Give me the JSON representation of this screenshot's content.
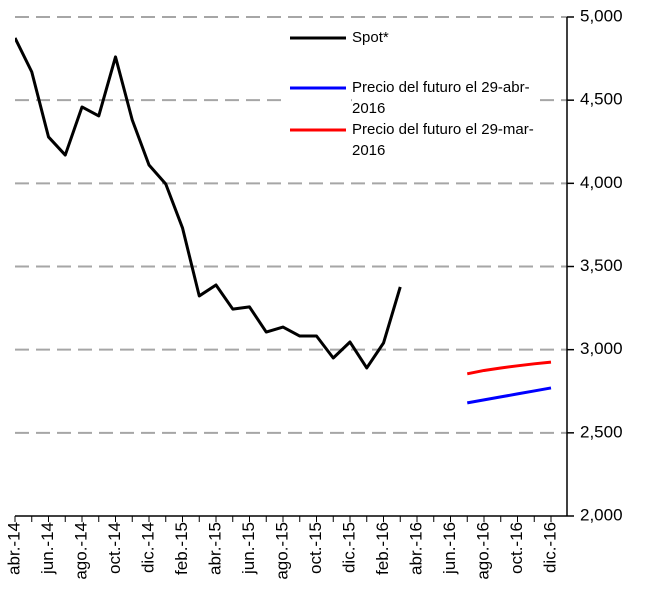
{
  "chart_data": {
    "type": "line",
    "categories": [
      "abr.-14",
      null,
      "jun.-14",
      null,
      "ago.-14",
      null,
      "oct.-14",
      null,
      "dic.-14",
      null,
      "feb.-15",
      null,
      "abr.-15",
      null,
      "jun.-15",
      null,
      "ago.-15",
      null,
      "oct.-15",
      null,
      "dic.-15",
      null,
      "feb.-16",
      null,
      "abr.-16",
      null,
      "jun.-16",
      null,
      "ago.-16",
      null,
      "oct.-16",
      null,
      "dic.-16"
    ],
    "series": [
      {
        "name": "Spot*",
        "color": "#000000",
        "values": [
          4874,
          4670,
          4279,
          4170,
          4459,
          4405,
          4760,
          4381,
          4110,
          3996,
          3732,
          3323,
          3389,
          3244,
          3257,
          3106,
          3136,
          3082,
          3082,
          2950,
          3046,
          2890,
          3040,
          3377,
          null,
          null,
          null,
          null,
          null,
          null,
          null,
          null,
          null
        ]
      },
      {
        "name": "Precio del futuro el 29-abr-2016",
        "color": "#0000ff",
        "values": [
          null,
          null,
          null,
          null,
          null,
          null,
          null,
          null,
          null,
          null,
          null,
          null,
          null,
          null,
          null,
          null,
          null,
          null,
          null,
          null,
          null,
          null,
          null,
          null,
          null,
          null,
          null,
          2680,
          2698,
          2716,
          2734,
          2752,
          2770
        ]
      },
      {
        "name": "Precio del futuro el 29-mar-2016",
        "color": "#ff0000",
        "values": [
          null,
          null,
          null,
          null,
          null,
          null,
          null,
          null,
          null,
          null,
          null,
          null,
          null,
          null,
          null,
          null,
          null,
          null,
          null,
          null,
          null,
          null,
          null,
          null,
          null,
          null,
          null,
          2855,
          2875,
          2890,
          2903,
          2915,
          2925
        ]
      }
    ],
    "ylim": [
      2000,
      5000
    ],
    "yticks": [
      {
        "value": 2000,
        "label": "2,000"
      },
      {
        "value": 2500,
        "label": "2,500"
      },
      {
        "value": 3000,
        "label": "3,000"
      },
      {
        "value": 3500,
        "label": "3,500"
      },
      {
        "value": 4000,
        "label": "4,000"
      },
      {
        "value": 4500,
        "label": "4,500"
      },
      {
        "value": 5000,
        "label": "5,000"
      }
    ],
    "grid": true,
    "y_axis_side": "right",
    "legend": "upper right"
  }
}
